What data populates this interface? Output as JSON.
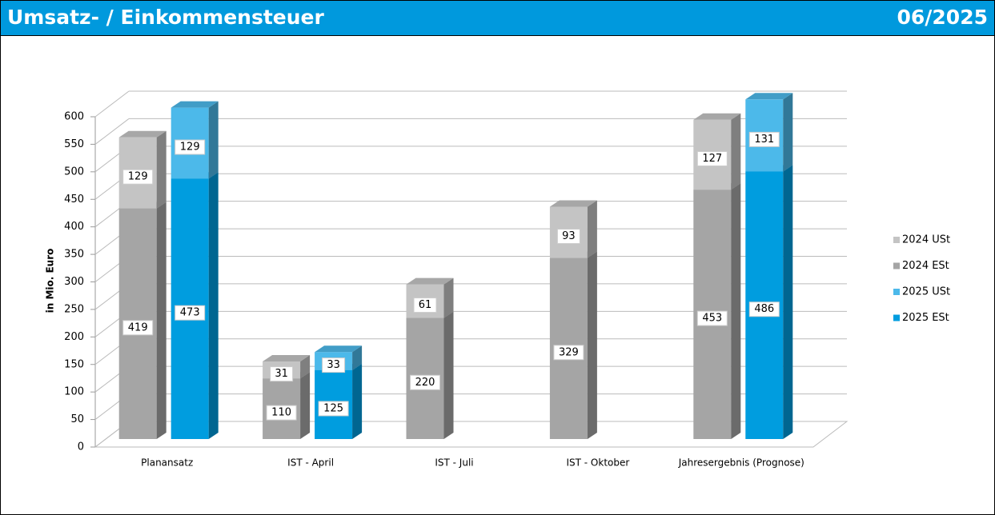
{
  "header": {
    "title": "Umsatz- / Einkommensteuer",
    "period": "06/2025"
  },
  "chart_data": {
    "type": "bar3d-stacked",
    "y_label": "in Mio. Euro",
    "categories": [
      "Planansatz",
      "IST - April",
      "IST - Juli",
      "IST - Oktober",
      "Jahresergebnis (Prognose)"
    ],
    "series": [
      {
        "name": "2024 USt",
        "color": "#c4c4c4",
        "values": [
          129,
          31,
          61,
          93,
          127
        ]
      },
      {
        "name": "2024 ESt",
        "color": "#a5a5a5",
        "values": [
          419,
          110,
          220,
          329,
          453
        ]
      },
      {
        "name": "2025 USt",
        "color": "#4cb9ea",
        "values": [
          129,
          33,
          null,
          null,
          131
        ]
      },
      {
        "name": "2025 ESt",
        "color": "#009ddf",
        "values": [
          473,
          125,
          null,
          null,
          486
        ]
      }
    ],
    "ylim": [
      0,
      600
    ],
    "yticks": [
      0,
      50,
      100,
      150,
      200,
      250,
      300,
      350,
      400,
      450,
      500,
      550,
      600
    ],
    "grid": true,
    "legend": "right"
  }
}
